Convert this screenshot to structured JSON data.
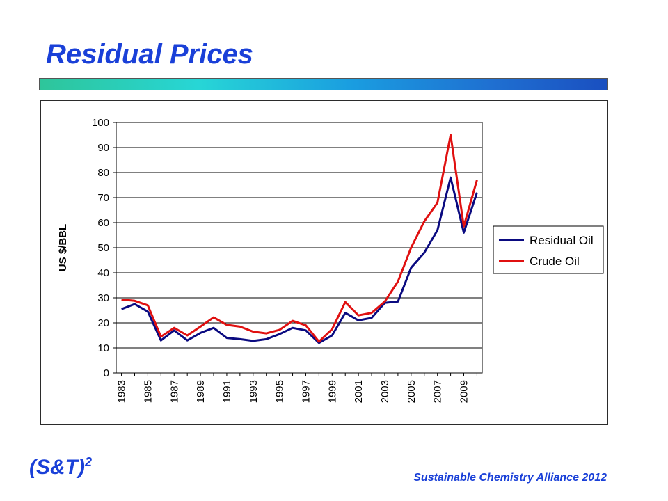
{
  "slide": {
    "title": "Residual Prices",
    "brand": "(S&T)",
    "brand_sup": "2",
    "footer": "Sustainable Chemistry Alliance 2012"
  },
  "colors": {
    "title_blue": "#1a40d8",
    "residual": "#0a0a80",
    "crude": "#e01010"
  },
  "chart_data": {
    "type": "line",
    "ylabel": "US $/BBL",
    "xlabel": "",
    "ylim": [
      0,
      100
    ],
    "yticks": [
      0,
      10,
      20,
      30,
      40,
      50,
      60,
      70,
      80,
      90,
      100
    ],
    "x": [
      1983,
      1984,
      1985,
      1986,
      1987,
      1988,
      1989,
      1990,
      1991,
      1992,
      1993,
      1994,
      1995,
      1996,
      1997,
      1998,
      1999,
      2000,
      2001,
      2002,
      2003,
      2004,
      2005,
      2006,
      2007,
      2008,
      2009,
      2010
    ],
    "xticks": [
      "1983",
      "1985",
      "1987",
      "1989",
      "1991",
      "1993",
      "1995",
      "1997",
      "1999",
      "2001",
      "2003",
      "2005",
      "2007",
      "2009"
    ],
    "grid": "horizontal",
    "legend_position": "right",
    "series": [
      {
        "name": "Residual Oil",
        "color": "#0a0a80",
        "values": [
          25.5,
          27.5,
          24.5,
          13,
          17,
          13,
          16,
          18,
          14,
          13.5,
          12.8,
          13.5,
          15.5,
          18,
          17,
          12,
          15,
          24,
          21,
          22,
          28,
          28.5,
          42,
          48,
          57,
          78,
          56,
          72
        ]
      },
      {
        "name": "Crude Oil",
        "color": "#e01010",
        "values": [
          29.3,
          28.8,
          27,
          14.5,
          18,
          15,
          18.5,
          22.2,
          19.2,
          18.5,
          16.5,
          15.8,
          17.2,
          20.8,
          19,
          12.5,
          17.5,
          28.3,
          23,
          24,
          28.5,
          36.5,
          50,
          60.5,
          68,
          95,
          58.5,
          77
        ]
      }
    ]
  }
}
